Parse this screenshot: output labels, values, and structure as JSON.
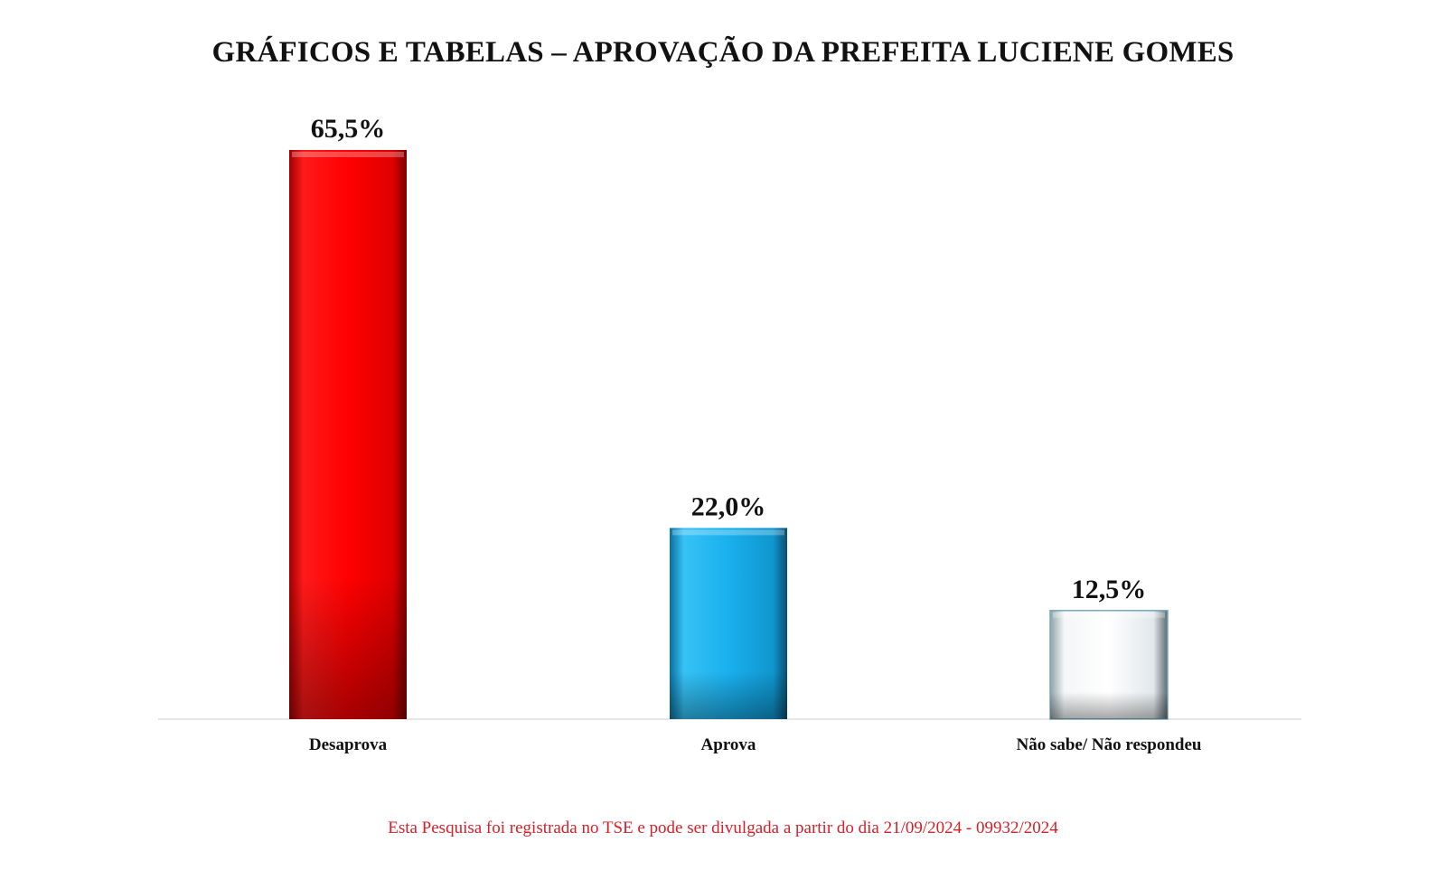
{
  "chart_data": {
    "type": "bar",
    "title": "GRÁFICOS E TABELAS – APROVAÇÃO DA PREFEITA LUCIENE GOMES",
    "categories": [
      "Desaprova",
      "Aprova",
      "Não sabe/ Não respondeu"
    ],
    "values": [
      65.5,
      22.0,
      12.5
    ],
    "value_labels": [
      "65,5%",
      "22,0%",
      "12,5%"
    ],
    "colors": [
      "#ff0000",
      "#1ab0ee",
      "#ffffff"
    ],
    "ylim": [
      0,
      65.5
    ],
    "grid": false,
    "legend": "none"
  },
  "footer": {
    "note": "Esta Pesquisa foi registrada no TSE e pode ser divulgada a partir do dia 21/09/2024 - 09932/2024"
  }
}
